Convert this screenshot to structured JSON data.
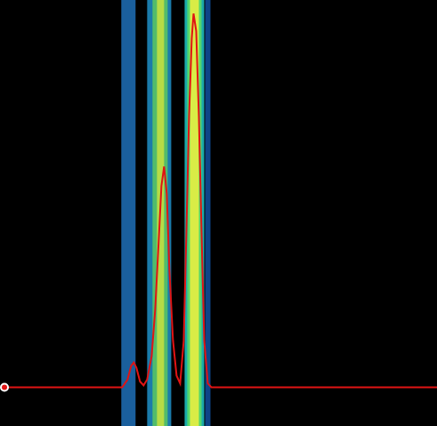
{
  "chart_data": {
    "type": "line",
    "xlim": [
      0,
      490
    ],
    "ylim": [
      -10,
      100
    ],
    "tick_labels": false,
    "grid": false,
    "color": "#e01414",
    "x": [
      5,
      137,
      143,
      147,
      150,
      153,
      157,
      161,
      165,
      170,
      174,
      178,
      181,
      184,
      187,
      190,
      194,
      198,
      202,
      206,
      209,
      212,
      215,
      217,
      220,
      223,
      226,
      229,
      233,
      237,
      490
    ],
    "values": [
      0,
      0,
      2,
      5.5,
      6.4,
      5,
      1.5,
      0.5,
      2,
      8,
      20,
      38,
      52,
      57,
      50,
      30,
      12,
      3,
      1,
      12,
      40,
      70,
      90,
      96.5,
      92,
      70,
      40,
      12,
      1,
      0,
      0
    ],
    "bands": [
      {
        "x1": 136,
        "x2": 152,
        "color": "#1e70b8"
      },
      {
        "x1": 165,
        "x2": 192,
        "color": "#1f8fc8"
      },
      {
        "x1": 171,
        "x2": 188,
        "color": "#5cc860"
      },
      {
        "x1": 176,
        "x2": 184,
        "color": "#c8e040"
      },
      {
        "x1": 207,
        "x2": 229,
        "color": "#20c8c8"
      },
      {
        "x1": 210,
        "x2": 226,
        "color": "#60e060"
      },
      {
        "x1": 213,
        "x2": 223,
        "color": "#f0f040"
      },
      {
        "x1": 230,
        "x2": 236,
        "color": "#1050a0"
      }
    ]
  }
}
